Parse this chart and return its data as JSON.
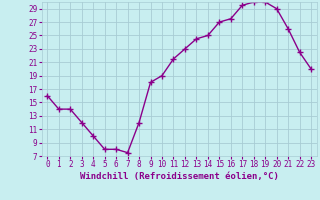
{
  "x": [
    0,
    1,
    2,
    3,
    4,
    5,
    6,
    7,
    8,
    9,
    10,
    11,
    12,
    13,
    14,
    15,
    16,
    17,
    18,
    19,
    20,
    21,
    22,
    23
  ],
  "y": [
    16,
    14,
    14,
    12,
    10,
    8,
    8,
    7.5,
    12,
    18,
    19,
    21.5,
    23,
    24.5,
    25,
    27,
    27.5,
    29.5,
    30,
    30,
    29,
    26,
    22.5,
    20
  ],
  "line_color": "#8B008B",
  "marker": "+",
  "marker_color": "#8B008B",
  "bg_color": "#c8eef0",
  "grid_color": "#a8ccd4",
  "xlabel": "Windchill (Refroidissement éolien,°C)",
  "xlim_min": -0.5,
  "xlim_max": 23.5,
  "ylim_min": 7,
  "ylim_max": 30,
  "yticks": [
    7,
    9,
    11,
    13,
    15,
    17,
    19,
    21,
    23,
    25,
    27,
    29
  ],
  "xticks": [
    0,
    1,
    2,
    3,
    4,
    5,
    6,
    7,
    8,
    9,
    10,
    11,
    12,
    13,
    14,
    15,
    16,
    17,
    18,
    19,
    20,
    21,
    22,
    23
  ],
  "tick_color": "#8B008B",
  "label_color": "#8B008B",
  "linewidth": 1.0,
  "markersize": 4,
  "tick_fontsize": 5.5,
  "xlabel_fontsize": 6.5
}
